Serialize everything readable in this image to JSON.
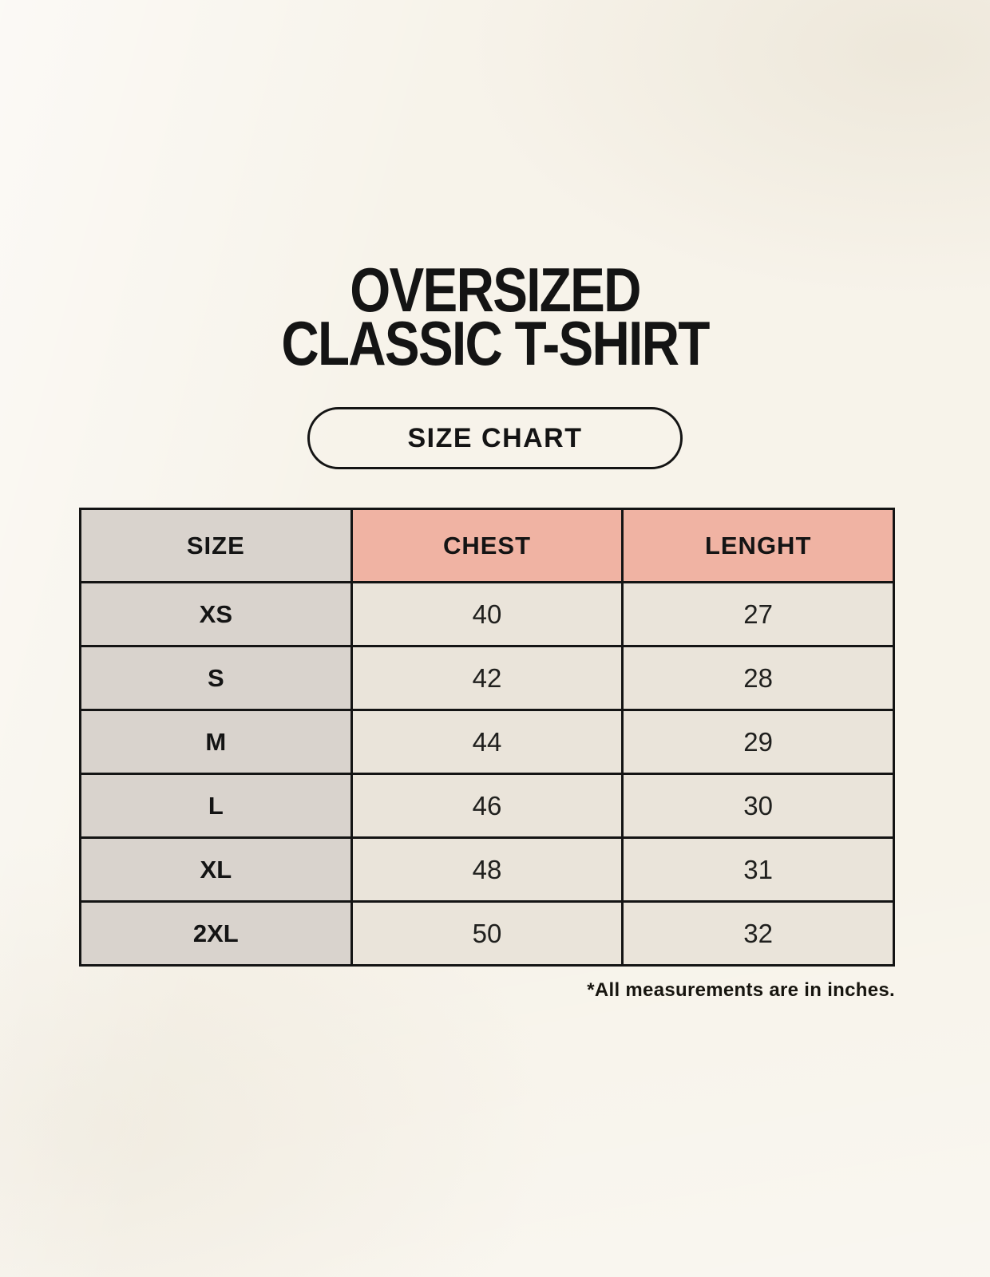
{
  "page": {
    "background_color": "#f7f3ea"
  },
  "colors": {
    "accent_salmon": "#f0b3a3",
    "label_gray": "#d9d3cd",
    "cell_beige": "#eae4da",
    "border_black": "#141414"
  },
  "header": {
    "title_line1": "OVERSIZED",
    "title_line2": "CLASSIC T-SHIRT",
    "badge_label": "SIZE CHART"
  },
  "chart_data": {
    "type": "table",
    "title": "OVERSIZED CLASSIC T-SHIRT",
    "subtitle": "SIZE CHART",
    "columns": [
      "SIZE",
      "CHEST",
      "LENGHT"
    ],
    "rows": [
      [
        "XS",
        "40",
        "27"
      ],
      [
        "S",
        "42",
        "28"
      ],
      [
        "M",
        "44",
        "29"
      ],
      [
        "L",
        "46",
        "30"
      ],
      [
        "XL",
        "48",
        "31"
      ],
      [
        "2XL",
        "50",
        "32"
      ]
    ],
    "units": "inches",
    "footnote": "*All measurements are in inches."
  }
}
